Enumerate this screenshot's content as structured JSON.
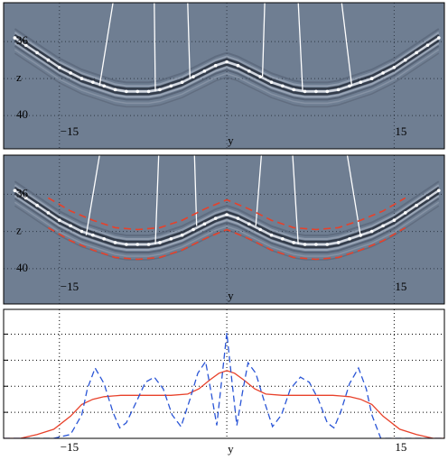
{
  "chart_data": [
    {
      "type": "section",
      "background": "#6f7e92",
      "xlim": [
        -20,
        19.5
      ],
      "ylim": [
        41.8,
        33.9
      ],
      "xticks": [
        {
          "value": -15,
          "label": "−15"
        },
        {
          "value": 0,
          "label": "y"
        },
        15
      ],
      "yticks": [
        36,
        {
          "value": 38,
          "label": "z"
        },
        40
      ],
      "dots": {
        "color": "#ffffff",
        "x": [
          -19,
          -18,
          -17,
          -16,
          -15,
          -14,
          -13,
          -12,
          -11,
          -10,
          -9,
          -8,
          -7,
          -6,
          -5,
          -4,
          -3,
          -2,
          -1,
          0,
          1,
          2,
          3,
          4,
          5,
          6,
          7,
          8,
          9,
          10,
          11,
          12,
          13,
          14,
          15,
          16,
          17,
          18,
          19
        ],
        "values": [
          35.8,
          36.2,
          36.6,
          37.0,
          37.4,
          37.7,
          38.0,
          38.2,
          38.4,
          38.6,
          38.7,
          38.7,
          38.7,
          38.6,
          38.4,
          38.2,
          37.9,
          37.6,
          37.3,
          37.1,
          37.3,
          37.6,
          37.9,
          38.2,
          38.4,
          38.6,
          38.7,
          38.7,
          38.7,
          38.6,
          38.4,
          38.2,
          38.0,
          37.7,
          37.4,
          37.0,
          36.6,
          36.2,
          35.8
        ]
      },
      "rays": [
        {
          "x": [
            -10.2,
            -11.4
          ],
          "values": [
            33.9,
            38.4
          ]
        },
        {
          "x": [
            -6.5,
            -6.4
          ],
          "values": [
            33.9,
            38.7
          ]
        },
        {
          "x": [
            -3.5,
            -3.3
          ],
          "values": [
            33.9,
            38.0
          ]
        },
        {
          "x": [
            3.4,
            3.2
          ],
          "values": [
            33.9,
            37.9
          ]
        },
        {
          "x": [
            6.4,
            6.8
          ],
          "values": [
            33.9,
            38.7
          ]
        },
        {
          "x": [
            10.3,
            11.2
          ],
          "values": [
            33.9,
            38.4
          ]
        }
      ],
      "ray_color": "#ffffff"
    },
    {
      "type": "section",
      "background": "#6f7e92",
      "xlim": [
        -20,
        19.5
      ],
      "ylim": [
        41.9,
        33.9
      ],
      "xticks": [
        {
          "value": -15,
          "label": "−15"
        },
        {
          "value": 0,
          "label": "y"
        },
        15
      ],
      "yticks": [
        36,
        {
          "value": 38,
          "label": "z"
        },
        40
      ],
      "dots": {
        "color": "#ffffff",
        "x": [
          -19,
          -18,
          -17,
          -16,
          -15,
          -14,
          -13,
          -12,
          -11,
          -10,
          -9,
          -8,
          -7,
          -6,
          -5,
          -4,
          -3,
          -2,
          -1,
          0,
          1,
          2,
          3,
          4,
          5,
          6,
          7,
          8,
          9,
          10,
          11,
          12,
          13,
          14,
          15,
          16,
          17,
          18,
          19
        ],
        "values": [
          35.8,
          36.2,
          36.6,
          37.0,
          37.4,
          37.7,
          38.0,
          38.2,
          38.4,
          38.6,
          38.7,
          38.7,
          38.7,
          38.6,
          38.4,
          38.2,
          37.9,
          37.6,
          37.3,
          37.1,
          37.3,
          37.6,
          37.9,
          38.2,
          38.4,
          38.6,
          38.7,
          38.7,
          38.7,
          38.6,
          38.4,
          38.2,
          38.0,
          37.7,
          37.4,
          37.0,
          36.6,
          36.2,
          35.8
        ]
      },
      "rays": [
        {
          "x": [
            -11.4,
            -12.6
          ],
          "values": [
            33.9,
            38.2
          ]
        },
        {
          "x": [
            -6.1,
            -6.4
          ],
          "values": [
            33.9,
            38.7
          ]
        },
        {
          "x": [
            -2.9,
            -2.7
          ],
          "values": [
            33.9,
            37.7
          ]
        },
        {
          "x": [
            3.1,
            2.6
          ],
          "values": [
            33.9,
            37.7
          ]
        },
        {
          "x": [
            5.9,
            6.4
          ],
          "values": [
            33.9,
            38.7
          ]
        },
        {
          "x": [
            10.8,
            12.0
          ],
          "values": [
            33.9,
            38.3
          ]
        }
      ],
      "ray_color": "#ffffff",
      "bounds": {
        "color": "#e8412a",
        "x": [
          -16,
          -14,
          -12,
          -10,
          -8,
          -6,
          -4,
          -2,
          0,
          2,
          4,
          6,
          8,
          10,
          12,
          14,
          16
        ],
        "upper": [
          36.2,
          36.9,
          37.4,
          37.8,
          37.9,
          37.8,
          37.4,
          36.8,
          36.3,
          36.8,
          37.4,
          37.8,
          37.9,
          37.8,
          37.4,
          36.9,
          36.2
        ],
        "lower": [
          37.8,
          38.5,
          39.0,
          39.4,
          39.5,
          39.4,
          39.0,
          38.4,
          37.9,
          38.4,
          39.0,
          39.4,
          39.5,
          39.4,
          39.0,
          38.5,
          37.8
        ]
      }
    },
    {
      "type": "line",
      "background": "#ffffff",
      "xlim": [
        -20,
        19.5
      ],
      "ylim": [
        0,
        0.99
      ],
      "xticks": [
        {
          "value": -15,
          "label": "−15"
        },
        {
          "value": 0,
          "label": "y"
        },
        15
      ],
      "ygrid": [
        0.2,
        0.4,
        0.6,
        0.8
      ],
      "series": [
        {
          "color": "#e8412a",
          "linestyle": "solid",
          "x": [
            -20,
            -18.5,
            -17,
            -15.5,
            -14,
            -13,
            -12,
            -11,
            -9.5,
            -7,
            -5,
            -3.5,
            -2.5,
            -1.5,
            -0.7,
            0,
            0.7,
            1.5,
            2.5,
            3.5,
            5,
            7,
            9.5,
            11,
            12,
            13,
            14,
            15.5,
            17,
            18.5,
            19.5
          ],
          "values": [
            0,
            0,
            0.03,
            0.07,
            0.17,
            0.26,
            0.3,
            0.32,
            0.33,
            0.33,
            0.33,
            0.34,
            0.38,
            0.45,
            0.5,
            0.52,
            0.5,
            0.45,
            0.38,
            0.34,
            0.33,
            0.33,
            0.33,
            0.32,
            0.3,
            0.26,
            0.17,
            0.07,
            0.03,
            0,
            0
          ]
        },
        {
          "color": "#2a55d6",
          "linestyle": "dashed",
          "x": [
            -20,
            -15.5,
            -14,
            -13,
            -12.5,
            -11.8,
            -11,
            -10.2,
            -9.6,
            -9,
            -8,
            -7.3,
            -6.5,
            -5.7,
            -4.9,
            -4.1,
            -3.3,
            -2.6,
            -1.9,
            -1.4,
            -0.9,
            -0.45,
            0,
            0.45,
            0.9,
            1.4,
            1.9,
            2.6,
            3.3,
            4.1,
            4.9,
            5.7,
            6.6,
            7.4,
            8.2,
            9,
            9.6,
            10.2,
            11,
            11.8,
            12.5,
            13,
            13.8,
            19.5
          ],
          "values": [
            0,
            0,
            0.03,
            0.18,
            0.38,
            0.54,
            0.42,
            0.2,
            0.08,
            0.12,
            0.3,
            0.43,
            0.47,
            0.38,
            0.18,
            0.09,
            0.3,
            0.5,
            0.59,
            0.35,
            0.1,
            0.45,
            0.81,
            0.45,
            0.1,
            0.35,
            0.58,
            0.5,
            0.3,
            0.09,
            0.18,
            0.38,
            0.47,
            0.43,
            0.3,
            0.12,
            0.08,
            0.2,
            0.42,
            0.54,
            0.38,
            0.18,
            0,
            0
          ]
        }
      ]
    }
  ]
}
